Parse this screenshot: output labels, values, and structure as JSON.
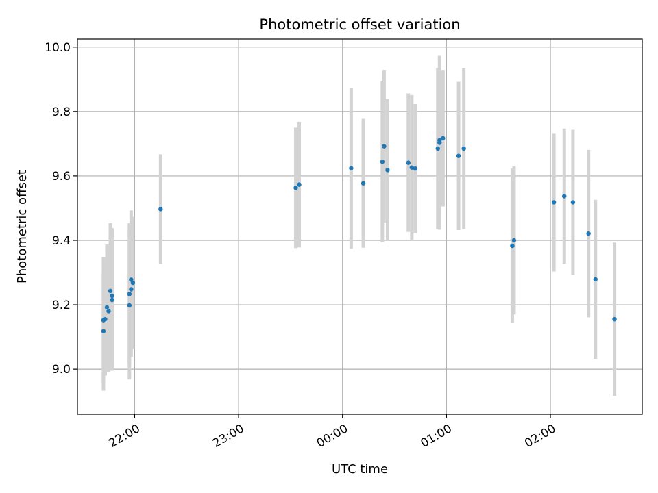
{
  "chart_data": {
    "type": "scatter",
    "title": "Photometric offset variation",
    "xlabel": "UTC time",
    "ylabel": "Photometric offset",
    "x_is_time": true,
    "xlim": [
      "21:27",
      "02:53"
    ],
    "ylim": [
      8.86,
      10.025
    ],
    "x_ticks": [
      "22:00",
      "23:00",
      "00:00",
      "01:00",
      "02:00"
    ],
    "y_ticks": [
      "9.0",
      "9.2",
      "9.4",
      "9.6",
      "9.8",
      "10.0"
    ],
    "grid": true,
    "point_color": "#1f77b4",
    "errorbar_color": "#d3d3d3",
    "series": [
      {
        "points": [
          {
            "t": "21:42",
            "y": 9.118,
            "err": 0.185
          },
          {
            "t": "21:42",
            "y": 9.152,
            "err": 0.195
          },
          {
            "t": "21:43",
            "y": 9.155,
            "err": 0.175
          },
          {
            "t": "21:44",
            "y": 9.192,
            "err": 0.195
          },
          {
            "t": "21:45",
            "y": 9.18,
            "err": 0.19
          },
          {
            "t": "21:46",
            "y": 9.243,
            "err": 0.21
          },
          {
            "t": "21:47",
            "y": 9.228,
            "err": 0.21
          },
          {
            "t": "21:47",
            "y": 9.215,
            "err": 0.22
          },
          {
            "t": "21:57",
            "y": 9.198,
            "err": 0.23
          },
          {
            "t": "21:57",
            "y": 9.233,
            "err": 0.22
          },
          {
            "t": "21:58",
            "y": 9.278,
            "err": 0.215
          },
          {
            "t": "21:58",
            "y": 9.248,
            "err": 0.21
          },
          {
            "t": "21:59",
            "y": 9.268,
            "err": 0.205
          },
          {
            "t": "22:15",
            "y": 9.497,
            "err": 0.17
          },
          {
            "t": "23:33",
            "y": 9.563,
            "err": 0.187
          },
          {
            "t": "23:35",
            "y": 9.573,
            "err": 0.195
          },
          {
            "t": "00:05",
            "y": 9.624,
            "err": 0.25
          },
          {
            "t": "00:12",
            "y": 9.577,
            "err": 0.2
          },
          {
            "t": "00:23",
            "y": 9.644,
            "err": 0.25
          },
          {
            "t": "00:24",
            "y": 9.692,
            "err": 0.237
          },
          {
            "t": "00:26",
            "y": 9.618,
            "err": 0.22
          },
          {
            "t": "00:38",
            "y": 9.641,
            "err": 0.215
          },
          {
            "t": "00:40",
            "y": 9.626,
            "err": 0.225
          },
          {
            "t": "00:42",
            "y": 9.623,
            "err": 0.2
          },
          {
            "t": "00:55",
            "y": 9.685,
            "err": 0.25
          },
          {
            "t": "00:56",
            "y": 9.703,
            "err": 0.27
          },
          {
            "t": "00:56",
            "y": 9.711,
            "err": 0.225
          },
          {
            "t": "00:58",
            "y": 9.717,
            "err": 0.212
          },
          {
            "t": "01:07",
            "y": 9.662,
            "err": 0.23
          },
          {
            "t": "01:10",
            "y": 9.685,
            "err": 0.25
          },
          {
            "t": "01:38",
            "y": 9.383,
            "err": 0.24
          },
          {
            "t": "01:39",
            "y": 9.4,
            "err": 0.23
          },
          {
            "t": "02:02",
            "y": 9.518,
            "err": 0.215
          },
          {
            "t": "02:08",
            "y": 9.537,
            "err": 0.21
          },
          {
            "t": "02:13",
            "y": 9.518,
            "err": 0.225
          },
          {
            "t": "02:22",
            "y": 9.421,
            "err": 0.26
          },
          {
            "t": "02:26",
            "y": 9.279,
            "err": 0.247
          },
          {
            "t": "02:37",
            "y": 9.155,
            "err": 0.238
          }
        ]
      }
    ]
  }
}
